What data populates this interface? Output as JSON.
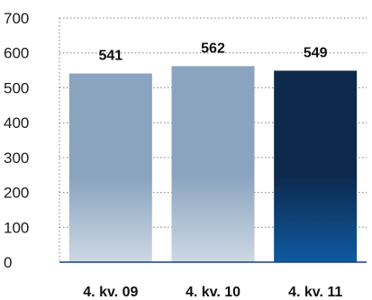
{
  "chart_data": {
    "type": "bar",
    "title": "",
    "xlabel": "",
    "ylabel": "",
    "categories": [
      "4. kv. 09",
      "4. kv. 10",
      "4. kv. 11"
    ],
    "values": [
      541,
      562,
      549
    ],
    "data_labels": [
      "541",
      "562",
      "549"
    ],
    "ylim": [
      0,
      700
    ],
    "yticks": [
      0,
      100,
      200,
      300,
      400,
      500,
      600,
      700
    ],
    "ytick_labels": [
      "0",
      "100",
      "200",
      "300",
      "400",
      "500",
      "600",
      "700"
    ],
    "grid": true,
    "legend": "none",
    "bar_styles": [
      {
        "top": "#8aa3bf",
        "bottom": "#cdd8e4"
      },
      {
        "top": "#8aa3bf",
        "bottom": "#cdd8e4"
      },
      {
        "top": "#0d2a4d",
        "bottom": "#0e5aa0"
      }
    ],
    "colors": {
      "grid": "#7f7f7f",
      "axis": "#1a3b8a"
    }
  }
}
